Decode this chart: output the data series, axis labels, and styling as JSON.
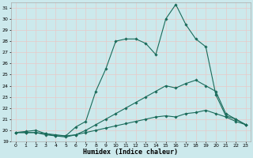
{
  "xlabel": "Humidex (Indice chaleur)",
  "bg_color": "#cce9ec",
  "grid_color": "#e8c8c8",
  "line_color": "#1a6b5a",
  "xlim": [
    -0.5,
    23.5
  ],
  "ylim": [
    19.0,
    31.5
  ],
  "yticks": [
    19,
    20,
    21,
    22,
    23,
    24,
    25,
    26,
    27,
    28,
    29,
    30,
    31
  ],
  "xticks": [
    0,
    1,
    2,
    3,
    4,
    5,
    6,
    7,
    8,
    9,
    10,
    11,
    12,
    13,
    14,
    15,
    16,
    17,
    18,
    19,
    20,
    21,
    22,
    23
  ],
  "series": [
    {
      "x": [
        0,
        1,
        2,
        3,
        4,
        5,
        6,
        7,
        8,
        9,
        10,
        11,
        12,
        13,
        14,
        15,
        16,
        17,
        18,
        19,
        20,
        21,
        22,
        23
      ],
      "y": [
        19.8,
        19.9,
        20.0,
        19.7,
        19.5,
        19.5,
        20.3,
        20.8,
        23.5,
        25.5,
        28.0,
        28.2,
        28.2,
        27.8,
        26.8,
        30.0,
        31.3,
        29.5,
        28.2,
        27.5,
        23.2,
        21.3,
        21.0,
        20.5
      ],
      "marker": "D",
      "markersize": 1.8,
      "linewidth": 0.8
    },
    {
      "x": [
        0,
        1,
        2,
        3,
        4,
        5,
        6,
        7,
        8,
        9,
        10,
        11,
        12,
        13,
        14,
        15,
        16,
        17,
        18,
        19,
        20,
        21,
        22,
        23
      ],
      "y": [
        19.8,
        19.8,
        19.8,
        19.6,
        19.5,
        19.4,
        19.6,
        20.0,
        20.5,
        21.0,
        21.5,
        22.0,
        22.5,
        23.0,
        23.5,
        24.0,
        23.8,
        24.2,
        24.5,
        24.0,
        23.5,
        21.5,
        21.0,
        20.5
      ],
      "marker": "D",
      "markersize": 1.8,
      "linewidth": 0.8
    },
    {
      "x": [
        0,
        1,
        2,
        3,
        4,
        5,
        6,
        7,
        8,
        9,
        10,
        11,
        12,
        13,
        14,
        15,
        16,
        17,
        18,
        19,
        20,
        21,
        22,
        23
      ],
      "y": [
        19.8,
        19.8,
        19.8,
        19.7,
        19.6,
        19.5,
        19.6,
        19.8,
        20.0,
        20.2,
        20.4,
        20.6,
        20.8,
        21.0,
        21.2,
        21.3,
        21.2,
        21.5,
        21.6,
        21.8,
        21.5,
        21.2,
        20.8,
        20.5
      ],
      "marker": "D",
      "markersize": 1.8,
      "linewidth": 0.8
    }
  ]
}
